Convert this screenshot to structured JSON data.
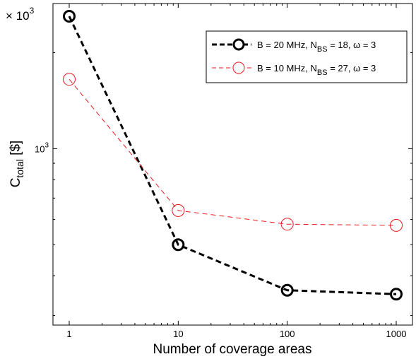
{
  "chart_data": {
    "type": "line",
    "x_scale": "log",
    "y_scale": "log",
    "xlim": [
      1,
      1000
    ],
    "ylim": [
      280,
      2850
    ],
    "x_ticks": [
      1,
      10,
      100,
      1000
    ],
    "x_tick_labels": [
      "1",
      "10",
      "100",
      "1000"
    ],
    "y_major_tick_label": "10",
    "y_major_tick_exponent": "3",
    "y_multiplier_prefix": "× 10",
    "y_multiplier_exponent": "3",
    "xlabel": "Number of coverage areas",
    "ylabel_main": "C",
    "ylabel_sub": "total",
    "ylabel_unit": " [$]",
    "grid": false,
    "legend_position": "top-right",
    "series": [
      {
        "legend_parts": [
          "B = 20 MHz, N",
          "BS",
          " = 18, ω = 3"
        ],
        "color": "#000000",
        "line_style": "bold-dashed",
        "marker": "circle",
        "x": [
          1,
          10,
          100,
          1000
        ],
        "y": [
          2600,
          500,
          360,
          350
        ]
      },
      {
        "legend_parts": [
          "B = 10 MHz, N",
          "BS",
          " = 27, ω = 3"
        ],
        "color": "#e8191f",
        "line_style": "thin-dashed",
        "marker": "circle",
        "x": [
          1,
          10,
          100,
          1000
        ],
        "y": [
          1650,
          640,
          580,
          575
        ]
      }
    ]
  }
}
